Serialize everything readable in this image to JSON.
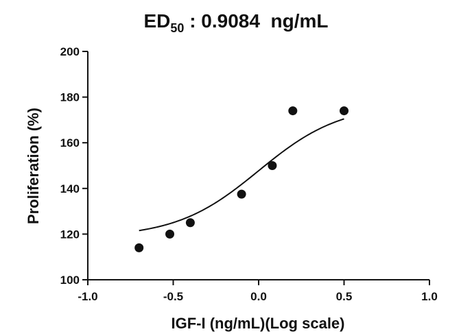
{
  "chart_data": {
    "type": "scatter",
    "title": {
      "prefix": "ED",
      "subscript": "50",
      "suffix": " : 0.9084  ng/mL"
    },
    "xlabel": "IGF-I (ng/mL)(Log scale)",
    "ylabel": "Proliferation (%)",
    "xlim": [
      -1.0,
      1.0
    ],
    "ylim": [
      100,
      200
    ],
    "x_ticks": [
      -1.0,
      -0.5,
      0.0,
      0.5,
      1.0
    ],
    "x_tick_labels": [
      "-1.0",
      "-0.5",
      "0.0",
      "0.5",
      "1.0"
    ],
    "y_ticks": [
      100,
      120,
      140,
      160,
      180,
      200
    ],
    "y_tick_labels": [
      "100",
      "120",
      "140",
      "160",
      "180",
      "200"
    ],
    "grid": false,
    "legend": "none",
    "points": [
      {
        "x": -0.7,
        "y": 114
      },
      {
        "x": -0.52,
        "y": 120
      },
      {
        "x": -0.4,
        "y": 125
      },
      {
        "x": -0.1,
        "y": 137.5
      },
      {
        "x": 0.08,
        "y": 150
      },
      {
        "x": 0.2,
        "y": 174
      },
      {
        "x": 0.5,
        "y": 174
      }
    ],
    "fit_curve": {
      "model": "sigmoidal dose-response",
      "bottom": 118.5,
      "top": 177,
      "log_ec50": 0.0,
      "hill_slope": 1.8,
      "x_range": [
        -0.7,
        0.5
      ]
    },
    "colors": {
      "axis": "#111111",
      "points": "#111111",
      "curve": "#111111",
      "background": "#ffffff"
    }
  }
}
